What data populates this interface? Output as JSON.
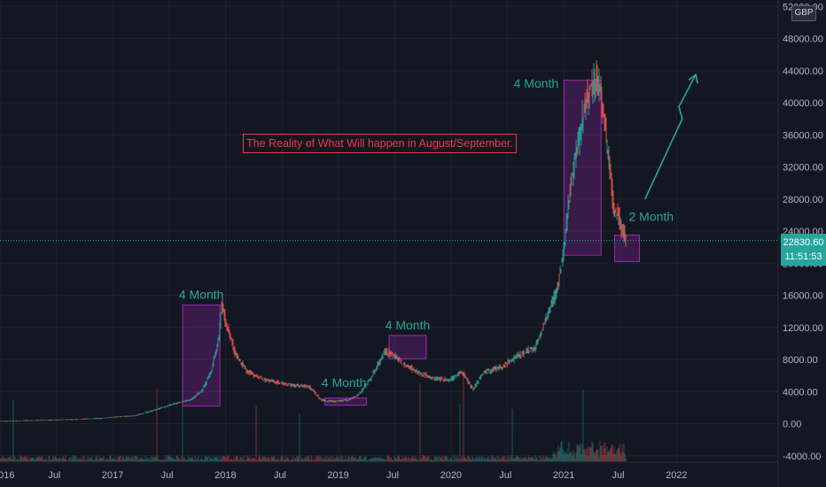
{
  "chart_data": {
    "type": "line",
    "quote_currency": "GBP",
    "price_axis": {
      "ticks": [
        52000,
        48000,
        44000,
        40000,
        36000,
        32000,
        28000,
        24000,
        20000,
        16000,
        12000,
        8000,
        4000,
        0,
        -4000
      ],
      "labels": [
        "52000.00",
        "48000.00",
        "44000.00",
        "40000.00",
        "36000.00",
        "32000.00",
        "28000.00",
        "24000.00",
        "20000.00",
        "16000.00",
        "12000.00",
        "8000.00",
        "4000.00",
        "0.00",
        "-4000.00"
      ],
      "range": [
        -4800,
        52800
      ]
    },
    "time_axis": {
      "labels": [
        "2016",
        "Jul",
        "2017",
        "Jul",
        "2018",
        "Jul",
        "2019",
        "Jul",
        "2020",
        "Jul",
        "2021",
        "Jul",
        "2022"
      ],
      "values": [
        2016.0,
        2016.5,
        2017.0,
        2017.5,
        2018.0,
        2018.5,
        2019.0,
        2019.5,
        2020.0,
        2020.5,
        2021.0,
        2021.5,
        2022.0
      ],
      "range": [
        2016.0,
        2022.9
      ]
    },
    "series": [
      {
        "x": [
          2016.0,
          2016.3,
          2016.6,
          2016.9,
          2017.0,
          2017.2,
          2017.4,
          2017.55,
          2017.7,
          2017.8,
          2017.88,
          2017.95,
          2017.97,
          2018.02,
          2018.1,
          2018.2,
          2018.35,
          2018.5,
          2018.6,
          2018.75,
          2018.85,
          2018.9,
          2019.0,
          2019.1,
          2019.2,
          2019.3,
          2019.42,
          2019.5,
          2019.58,
          2019.7,
          2019.85,
          2020.0,
          2020.1,
          2020.2,
          2020.3,
          2020.45,
          2020.6,
          2020.75,
          2020.85,
          2020.95,
          2021.0,
          2021.05,
          2021.1,
          2021.2,
          2021.28,
          2021.33,
          2021.38,
          2021.45,
          2021.52,
          2021.55
        ],
        "y": [
          300,
          400,
          500,
          650,
          800,
          1000,
          1800,
          2500,
          3000,
          4200,
          6500,
          11000,
          15000,
          12000,
          8500,
          6500,
          5500,
          5000,
          4800,
          4600,
          3000,
          2800,
          2800,
          3000,
          3800,
          5800,
          9000,
          8500,
          7500,
          6500,
          5600,
          5500,
          6500,
          4300,
          6500,
          7000,
          8500,
          9500,
          13000,
          17000,
          21000,
          28000,
          33000,
          40000,
          43000,
          42000,
          36000,
          27000,
          24500,
          22830
        ]
      }
    ],
    "last_price": "22830.60",
    "countdown": "11:51:53",
    "annotations": [
      {
        "label": "4 Month",
        "x": [
          2017.62,
          2017.95
        ],
        "y": [
          2200,
          14800
        ]
      },
      {
        "label": "4 Month",
        "x": [
          2018.88,
          2019.25
        ],
        "y": [
          2300,
          3200
        ]
      },
      {
        "label": "4 Month",
        "x": [
          2019.45,
          2019.78
        ],
        "y": [
          8100,
          11000
        ]
      },
      {
        "label": "4 Month",
        "x": [
          2021.0,
          2021.33
        ],
        "y": [
          21000,
          42800
        ]
      },
      {
        "label": "2 Month",
        "x": [
          2021.45,
          2021.67
        ],
        "y": [
          20200,
          23500
        ]
      }
    ],
    "headline": "The Reality of What Will happen in August/September.",
    "up_arrow": {
      "x": [
        2021.72,
        2022.05,
        2022.02,
        2022.17
      ],
      "y": [
        28000,
        38000,
        39500,
        43500
      ]
    },
    "colors": {
      "up": "#26a69a",
      "down": "#ef5350",
      "background": "#131722",
      "box": "#9c27b0",
      "headline": "#f23645",
      "grid": "#1e222d",
      "last_price_line": "#26a69a"
    },
    "grid": true
  }
}
